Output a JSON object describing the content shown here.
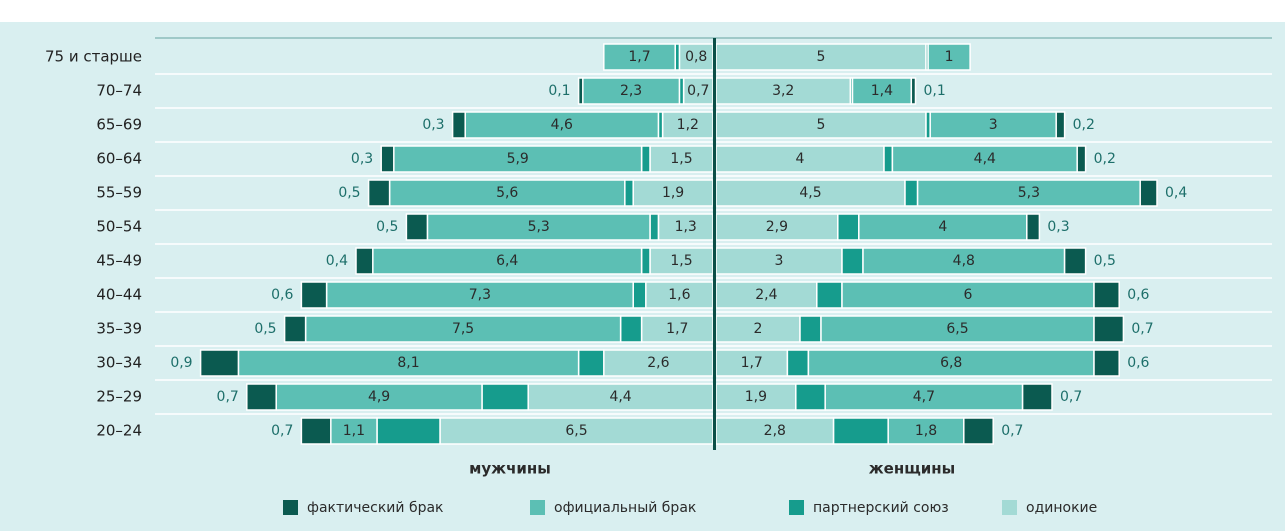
{
  "chart_data": {
    "type": "bar",
    "categories": [
      "75 и старше",
      "70–74",
      "65–69",
      "60–64",
      "55–59",
      "50–54",
      "45–49",
      "40–44",
      "35–39",
      "30–34",
      "25–29",
      "20–24"
    ],
    "legend": [
      {
        "name": "фактический брак",
        "color": "#0b5a50"
      },
      {
        "name": "официальный брак",
        "color": "#5cbfb4"
      },
      {
        "name": "партнерский союз",
        "color": "#169c8d"
      },
      {
        "name": "одинокие",
        "color": "#a3dad5"
      }
    ],
    "groups": [
      {
        "name": "мужчины",
        "series": [
          {
            "values": [
              null,
              0.1,
              0.3,
              0.3,
              0.5,
              0.5,
              0.4,
              0.6,
              0.5,
              0.9,
              0.7,
              0.7
            ],
            "value_labels": [
              null,
              "0,1",
              "0,3",
              "0,3",
              "0,5",
              "0,5",
              "0,4",
              "0,6",
              "0,5",
              "0,9",
              "0,7",
              "0,7"
            ]
          },
          {
            "values": [
              1.7,
              2.3,
              4.6,
              5.9,
              5.6,
              5.3,
              6.4,
              7.3,
              7.5,
              8.1,
              4.9,
              1.1
            ],
            "value_labels": [
              "1,7",
              "2,3",
              "4,6",
              "5,9",
              "5,6",
              "5,3",
              "6,4",
              "7,3",
              "7,5",
              "8,1",
              "4,9",
              "1,1"
            ]
          },
          {
            "values": [
              0.1,
              0.1,
              0.1,
              0.2,
              0.2,
              0.2,
              0.2,
              0.3,
              0.5,
              0.6,
              1.1,
              1.5
            ],
            "value_labels": [
              null,
              null,
              null,
              null,
              null,
              null,
              null,
              null,
              null,
              null,
              null,
              null
            ]
          },
          {
            "values": [
              0.8,
              0.7,
              1.2,
              1.5,
              1.9,
              1.3,
              1.5,
              1.6,
              1.7,
              2.6,
              4.4,
              6.5
            ],
            "value_labels": [
              "0,8",
              "0,7",
              "1,2",
              "1,5",
              "1,9",
              "1,3",
              "1,5",
              "1,6",
              "1,7",
              "2,6",
              "4,4",
              "6,5"
            ]
          }
        ]
      },
      {
        "name": "женщины",
        "series": [
          {
            "values": [
              null,
              0.1,
              0.2,
              0.2,
              0.4,
              0.3,
              0.5,
              0.6,
              0.7,
              0.6,
              0.7,
              0.7
            ],
            "value_labels": [
              null,
              "0,1",
              "0,2",
              "0,2",
              "0,4",
              "0,3",
              "0,5",
              "0,6",
              "0,7",
              "0,6",
              "0,7",
              "0,7"
            ]
          },
          {
            "values": [
              1,
              1.4,
              3,
              4.4,
              5.3,
              4,
              4.8,
              6,
              6.5,
              6.8,
              4.7,
              1.8
            ],
            "value_labels": [
              "1",
              "1,4",
              "3",
              "4,4",
              "5,3",
              "4",
              "4,8",
              "6",
              "6,5",
              "6,8",
              "4,7",
              "1,8"
            ]
          },
          {
            "values": [
              0.05,
              0.05,
              0.1,
              0.2,
              0.3,
              0.5,
              0.5,
              0.6,
              0.5,
              0.5,
              0.7,
              1.3
            ],
            "value_labels": [
              null,
              null,
              null,
              null,
              null,
              null,
              null,
              null,
              null,
              null,
              null,
              null
            ]
          },
          {
            "values": [
              5,
              3.2,
              5,
              4,
              4.5,
              2.9,
              3,
              2.4,
              2,
              1.7,
              1.9,
              2.8
            ],
            "value_labels": [
              "5",
              "3,2",
              "5",
              "4",
              "4,5",
              "2,9",
              "3",
              "2,4",
              "2",
              "1,7",
              "1,9",
              "2,8"
            ]
          }
        ]
      }
    ]
  }
}
